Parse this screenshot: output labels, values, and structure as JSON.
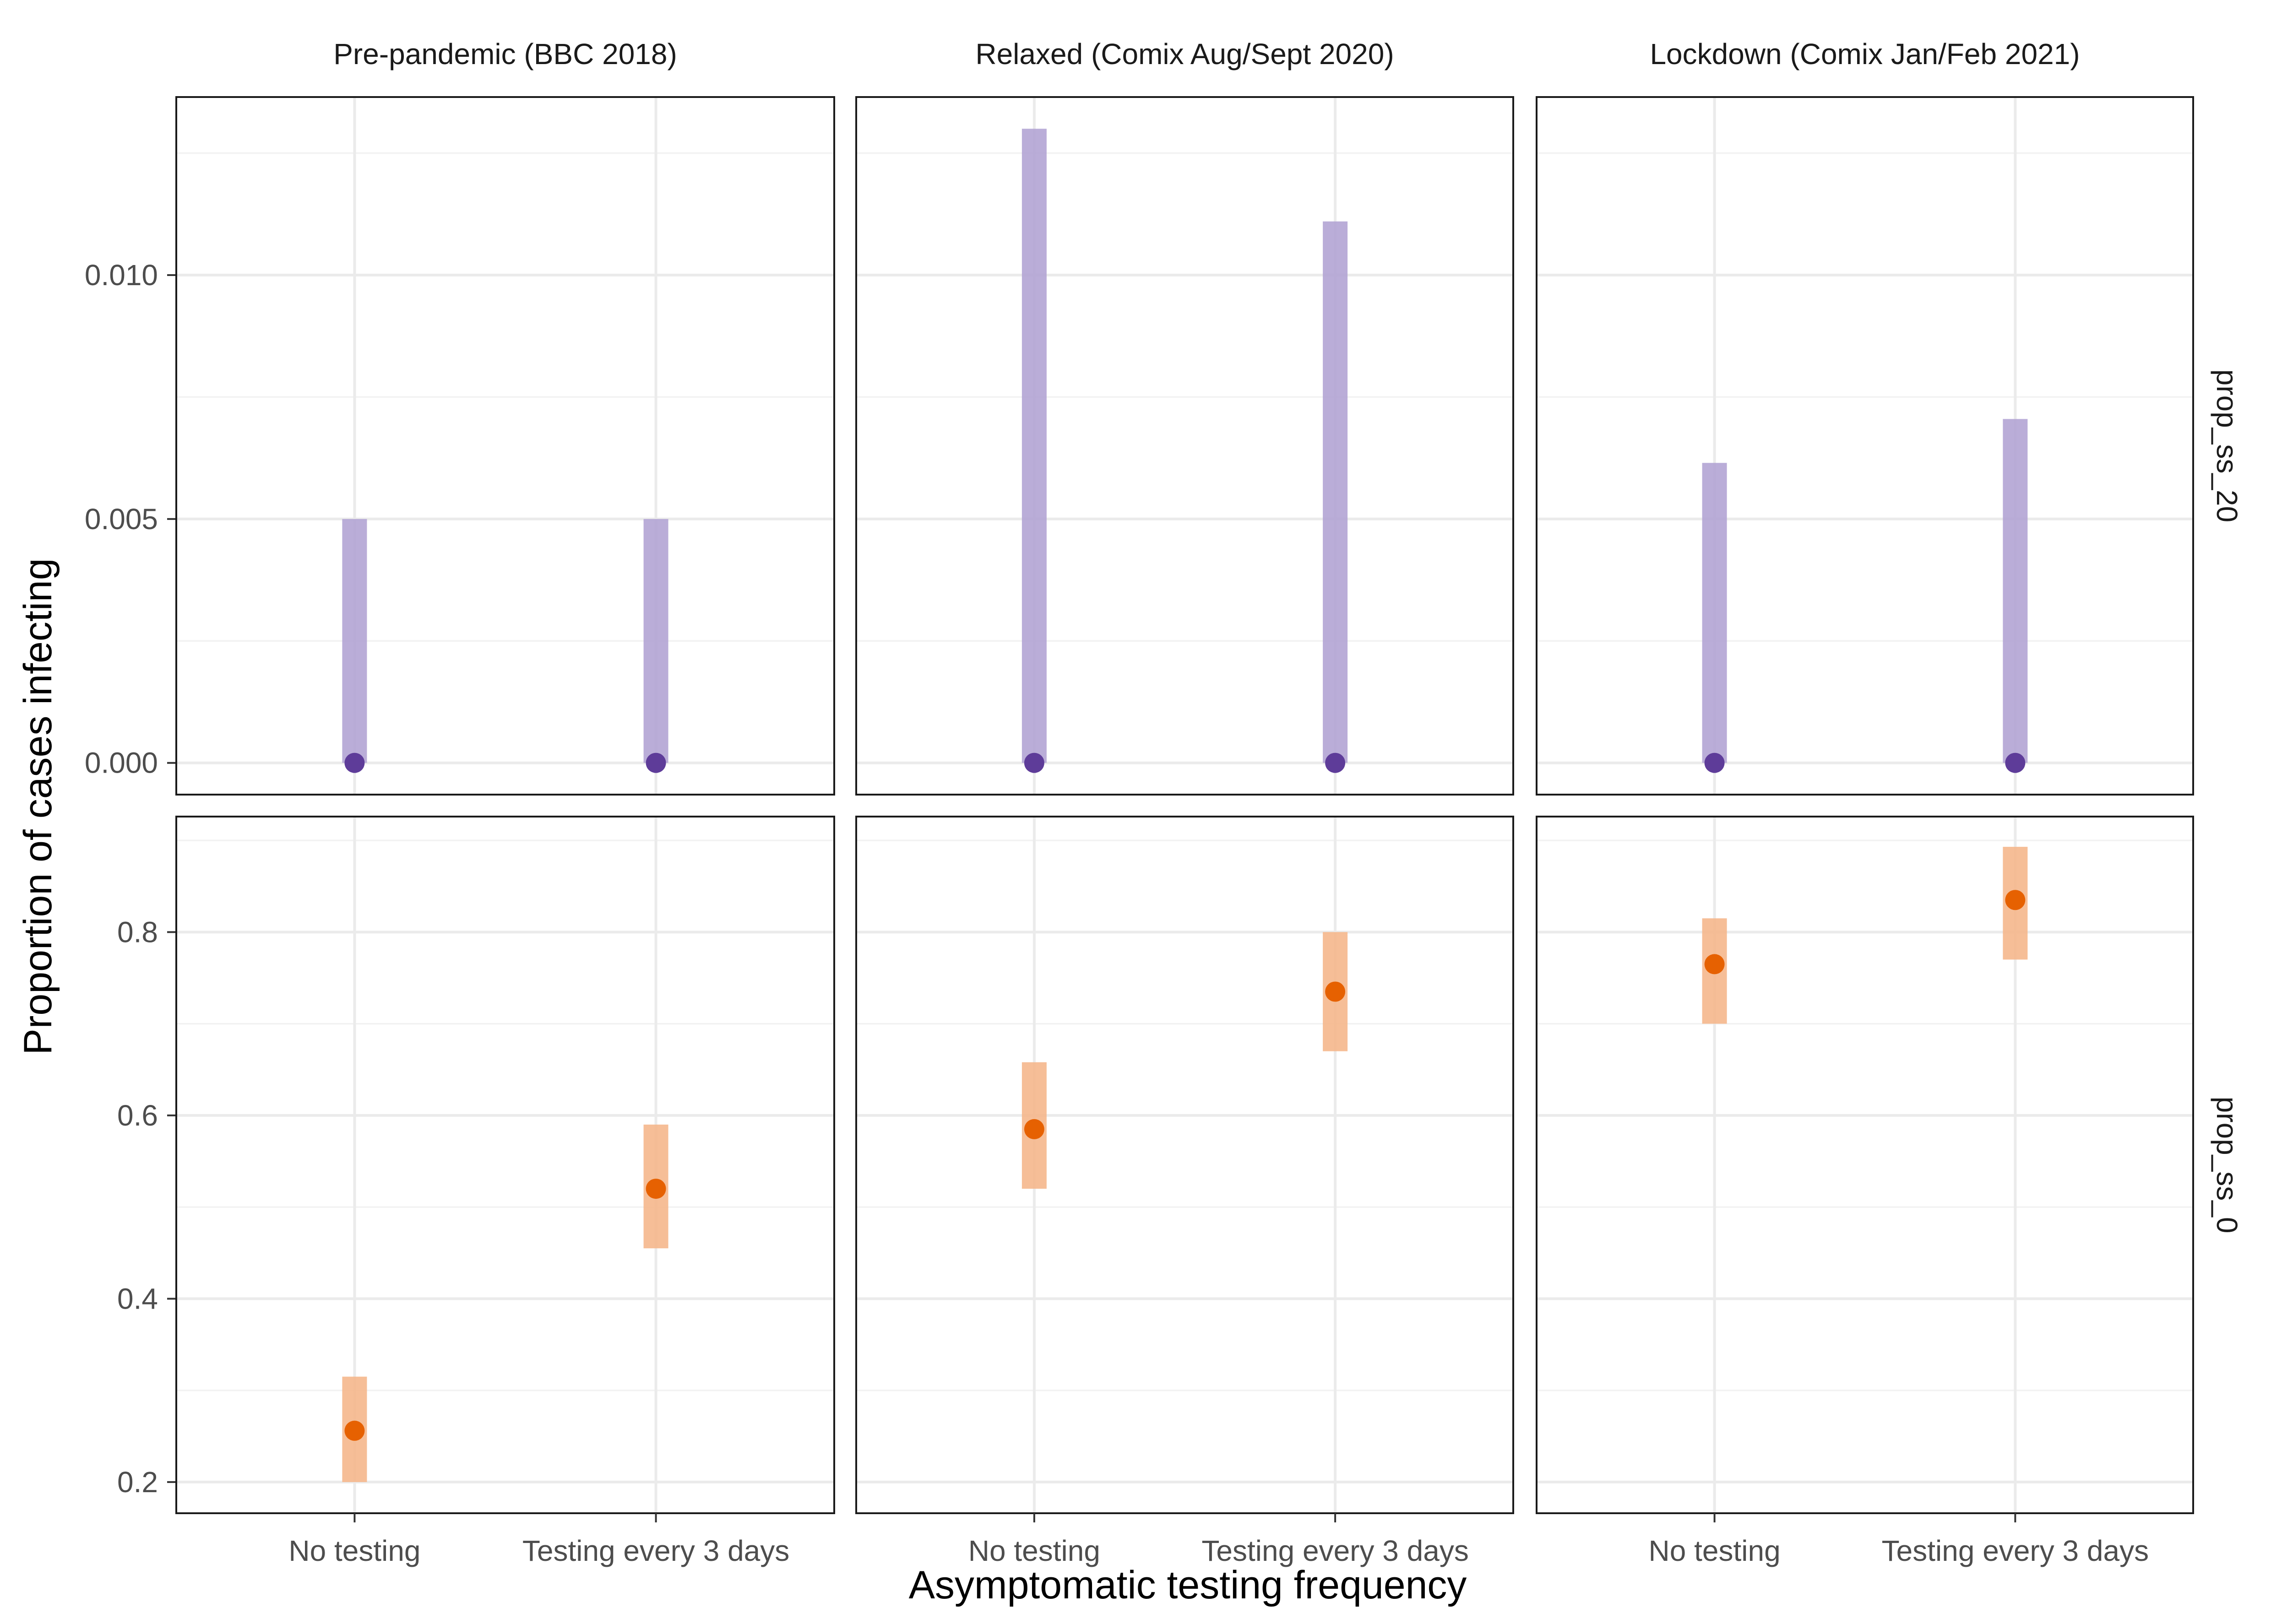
{
  "chart_data": {
    "type": "scatter",
    "facet_columns": [
      "Pre-pandemic (BBC 2018)",
      "Relaxed (Comix Aug/Sept 2020)",
      "Lockdown (Comix Jan/Feb 2021)"
    ],
    "facet_rows": [
      {
        "label": "prop_ss_20",
        "color": "#5E3C99",
        "band_color": "#B2A4D4",
        "ylim": [
          -0.00065,
          0.01365
        ],
        "y_ticks": [
          0.0,
          0.005,
          0.01
        ],
        "y_tick_labels": [
          "0.000",
          "0.005",
          "0.010"
        ],
        "y_minor": [
          0.0025,
          0.0075,
          0.0125
        ],
        "panels": [
          [
            {
              "x": "No testing",
              "y": 0.0,
              "lo": 0.0,
              "hi": 0.005
            },
            {
              "x": "Testing every 3 days",
              "y": 0.0,
              "lo": 0.0,
              "hi": 0.005
            }
          ],
          [
            {
              "x": "No testing",
              "y": 0.0,
              "lo": 0.0,
              "hi": 0.013
            },
            {
              "x": "Testing every 3 days",
              "y": 0.0,
              "lo": 0.0,
              "hi": 0.0111
            }
          ],
          [
            {
              "x": "No testing",
              "y": 0.0,
              "lo": 0.0,
              "hi": 0.00615
            },
            {
              "x": "Testing every 3 days",
              "y": 0.0,
              "lo": 0.0,
              "hi": 0.00705
            }
          ]
        ]
      },
      {
        "label": "prop_ss_0",
        "color": "#E66101",
        "band_color": "#F5B78C",
        "ylim": [
          0.166,
          0.926
        ],
        "y_ticks": [
          0.2,
          0.4,
          0.6,
          0.8
        ],
        "y_tick_labels": [
          "0.2",
          "0.4",
          "0.6",
          "0.8"
        ],
        "y_minor": [
          0.3,
          0.5,
          0.7,
          0.9
        ],
        "panels": [
          [
            {
              "x": "No testing",
              "y": 0.256,
              "lo": 0.2,
              "hi": 0.315
            },
            {
              "x": "Testing every 3 days",
              "y": 0.52,
              "lo": 0.455,
              "hi": 0.59
            }
          ],
          [
            {
              "x": "No testing",
              "y": 0.585,
              "lo": 0.52,
              "hi": 0.658
            },
            {
              "x": "Testing every 3 days",
              "y": 0.735,
              "lo": 0.67,
              "hi": 0.8
            }
          ],
          [
            {
              "x": "No testing",
              "y": 0.765,
              "lo": 0.7,
              "hi": 0.815
            },
            {
              "x": "Testing every 3 days",
              "y": 0.835,
              "lo": 0.77,
              "hi": 0.893
            }
          ]
        ]
      }
    ],
    "categories": [
      "No testing",
      "Testing every 3 days"
    ],
    "xlabel": "Asymptomatic testing frequency",
    "ylabel": "Proportion of cases infecting",
    "grid": true
  }
}
